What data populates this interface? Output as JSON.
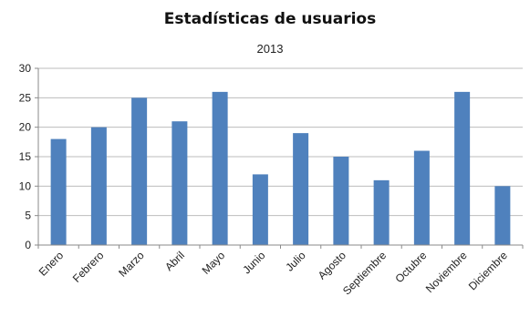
{
  "chart_data": {
    "type": "bar",
    "title": "Estadísticas de usuarios",
    "subtitle": "2013",
    "xlabel": "",
    "ylabel": "",
    "categories": [
      "Enero",
      "Febrero",
      "Marzo",
      "Abril",
      "Mayo",
      "Junio",
      "Julio",
      "Agosto",
      "Septiembre",
      "Octubre",
      "Noviembre",
      "Diciembre"
    ],
    "values": [
      18,
      20,
      25,
      21,
      26,
      12,
      19,
      15,
      11,
      16,
      26,
      10
    ],
    "ylim": [
      0,
      30
    ],
    "yticks": [
      0,
      5,
      10,
      15,
      20,
      25,
      30
    ],
    "grid": true,
    "legend": "none",
    "bar_color": "#4f81bd"
  }
}
